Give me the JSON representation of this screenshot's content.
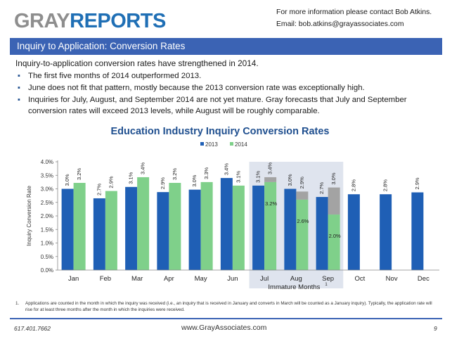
{
  "header": {
    "logo_gray": "GRAY",
    "logo_reports": "REPORTS",
    "contact_line1": "For more information please contact Bob Atkins.",
    "contact_line2": "Email: bob.atkins@grayassociates.com"
  },
  "banner": {
    "title": "Inquiry to Application:  Conversion Rates"
  },
  "intro": "Inquiry-to-application conversion rates have strengthened in 2014.",
  "bullets": [
    "The first five months of 2014 outperformed 2013.",
    "June does not fit that pattern, mostly because the 2013 conversion rate was exceptionally high.",
    "Inquiries for July, August, and September 2014 are not yet mature.  Gray forecasts that July and September conversion rates will exceed 2013 levels, while August will be roughly comparable."
  ],
  "chart_data": {
    "type": "bar",
    "title": "Education Industry Inquiry Conversion Rates",
    "ylabel": "Inquiry Conversion Rate",
    "ylim": [
      0,
      4.0
    ],
    "yticks": [
      "0.0%",
      "0.5%",
      "1.0%",
      "1.5%",
      "2.0%",
      "2.5%",
      "3.0%",
      "3.5%",
      "4.0%"
    ],
    "categories": [
      "Jan",
      "Feb",
      "Mar",
      "Apr",
      "May",
      "Jun",
      "Jul",
      "Aug",
      "Sep",
      "Oct",
      "Nov",
      "Dec"
    ],
    "series": [
      {
        "name": "2013",
        "color": "#1f5fb5",
        "values": [
          3.0,
          2.65,
          3.07,
          2.88,
          2.97,
          3.4,
          3.12,
          3.0,
          2.7,
          2.8,
          2.8,
          2.87
        ],
        "labels": [
          "3.0%",
          "2.7%",
          "3.1%",
          "2.9%",
          "3.0%",
          "3.4%",
          "3.1%",
          "3.0%",
          "2.7%",
          "2.8%",
          "2.8%",
          "2.9%"
        ]
      },
      {
        "name": "2014",
        "color": "#7fd08a",
        "values": [
          3.22,
          2.92,
          3.43,
          3.22,
          3.25,
          3.12,
          3.25,
          2.6,
          2.05,
          null,
          null,
          null
        ],
        "labels": [
          "3.2%",
          "2.9%",
          "3.4%",
          "3.2%",
          "3.3%",
          "3.1%",
          "3.4%",
          "2.9%",
          "3.0%",
          "",
          "",
          ""
        ],
        "forecast_totals": [
          null,
          null,
          null,
          null,
          null,
          null,
          3.43,
          2.9,
          3.05,
          null,
          null,
          null
        ],
        "inner_labels": [
          "",
          "",
          "",
          "",
          "",
          "",
          "3.2%",
          "2.6%",
          "2.0%",
          "",
          "",
          ""
        ],
        "forecast_color": "#a3a3a3"
      }
    ],
    "immature_label": "Immature Months",
    "immature_footnote_mark": "1",
    "immature_range": [
      "Jul",
      "Sep"
    ],
    "legend_position": "top-center"
  },
  "footnote": {
    "number": "1.",
    "text": "Applications are counted in the month in which the inquiry was received (i.e., an inquiry that is received in January and converts in March will be counted as a January inquiry). Typically, the application rate will rise for at least three months after the month in which the inquiries were received."
  },
  "footer": {
    "phone": "617.401.7662",
    "website": "www.GrayAssociates.com",
    "page": "9"
  }
}
